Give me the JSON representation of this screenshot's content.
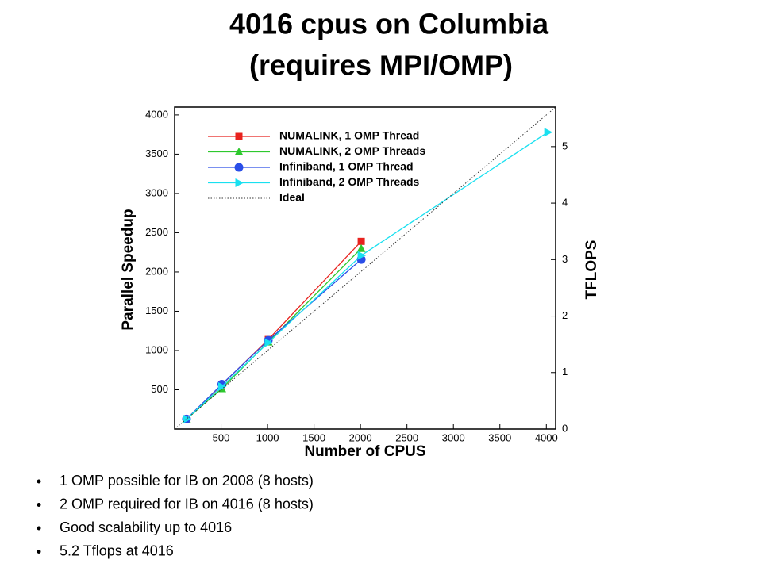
{
  "title_lines": [
    "4016 cpus on Columbia",
    "(requires MPI/OMP)"
  ],
  "chart_data": {
    "type": "line",
    "x_label": "Number of CPUS",
    "y_label": "Parallel Speedup",
    "y2_label": "TFLOPS",
    "xlim": [
      0,
      4100
    ],
    "ylim": [
      0,
      4100
    ],
    "y2lim": [
      0,
      5.7
    ],
    "xticks": [
      500,
      1000,
      1500,
      2000,
      2500,
      3000,
      3500,
      4000
    ],
    "yticks": [
      500,
      1000,
      1500,
      2000,
      2500,
      3000,
      3500,
      4000
    ],
    "y2ticks": [
      0,
      1,
      2,
      3,
      4,
      5
    ],
    "legend": "top-left",
    "series": [
      {
        "name": "NUMALINK, 1 OMP Thread",
        "color": "#e8221e",
        "marker": "square",
        "x": [
          128,
          508,
          1008,
          2008
        ],
        "values": [
          128,
          565,
          1140,
          2390
        ]
      },
      {
        "name": "NUMALINK, 2 OMP Threads",
        "color": "#2ec82e",
        "marker": "triangle",
        "x": [
          128,
          508,
          1008,
          2008
        ],
        "values": [
          128,
          515,
          1110,
          2300
        ]
      },
      {
        "name": "Infiniband, 1 OMP Thread",
        "color": "#2a4ee8",
        "marker": "circle",
        "x": [
          128,
          508,
          1008,
          2008
        ],
        "values": [
          128,
          570,
          1130,
          2160
        ]
      },
      {
        "name": "Infiniband, 2 OMP Threads",
        "color": "#19e0f0",
        "marker": "right-triangle",
        "x": [
          128,
          508,
          1008,
          2008,
          4016
        ],
        "values": [
          128,
          540,
          1100,
          2210,
          3780
        ]
      },
      {
        "name": "Ideal",
        "color": "#333333",
        "marker": "none",
        "dash": true,
        "x": [
          0,
          4100
        ],
        "values": [
          0,
          4100
        ]
      }
    ]
  },
  "bullets": [
    "1 OMP possible for IB on 2008 (8 hosts)",
    "2 OMP required for IB on 4016 (8 hosts)",
    "Good scalability up to 4016",
    "5.2 Tflops at 4016"
  ]
}
